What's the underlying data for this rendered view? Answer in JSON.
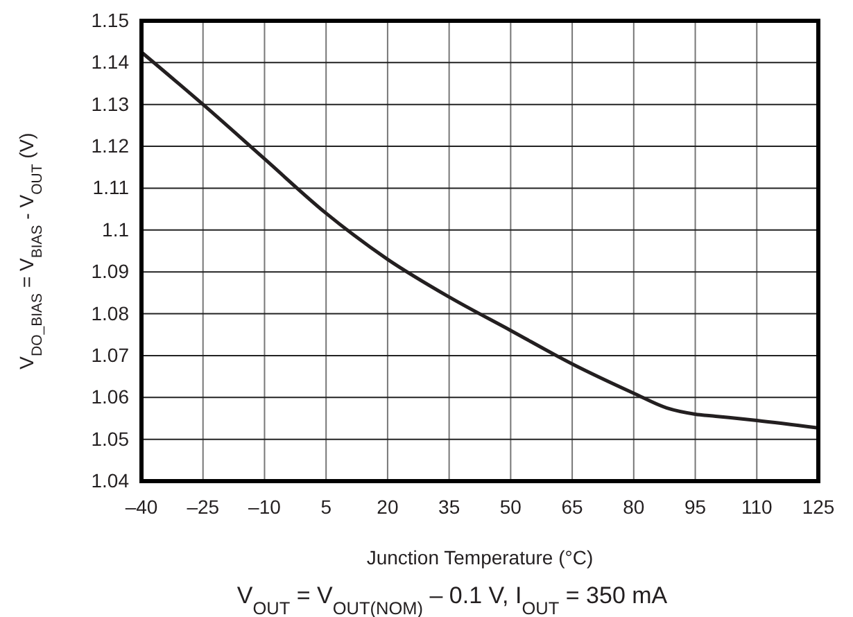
{
  "chart_data": {
    "type": "line",
    "xlabel": "Junction Temperature (°C)",
    "ylabel": "V$_{DO_BIAS}$ = V$_{BIAS}$ - V$_{OUT}$ (V)",
    "annotations": [
      "V$_{OUT}$ = V$_{OUT(NOM)}$ – 0.1 V, I$_{OUT}$ = 350 mA"
    ],
    "series": [
      {
        "color": "#231f20",
        "x": [
          -40,
          -25,
          -10,
          5,
          20,
          35,
          50,
          65,
          80,
          88,
          95,
          100,
          110,
          125
        ],
        "values": [
          1.1425,
          1.13,
          1.117,
          1.104,
          1.093,
          1.084,
          1.076,
          1.068,
          1.061,
          1.0575,
          1.056,
          1.0555,
          1.0545,
          1.0527
        ]
      }
    ],
    "xlim": [
      -40,
      125
    ],
    "xticks": [
      {
        "value": -40,
        "label": "–40"
      },
      {
        "value": -25,
        "label": "–25"
      },
      {
        "value": -10,
        "label": "–10"
      },
      5,
      20,
      35,
      50,
      65,
      80,
      95,
      110,
      125
    ],
    "ylim": [
      1.04,
      1.15
    ],
    "yticks": [
      1.04,
      1.05,
      1.06,
      1.07,
      1.08,
      1.09,
      1.1,
      1.11,
      1.12,
      1.13,
      1.14,
      1.15
    ],
    "grid": true,
    "marker": "none",
    "line_style": "solid"
  }
}
